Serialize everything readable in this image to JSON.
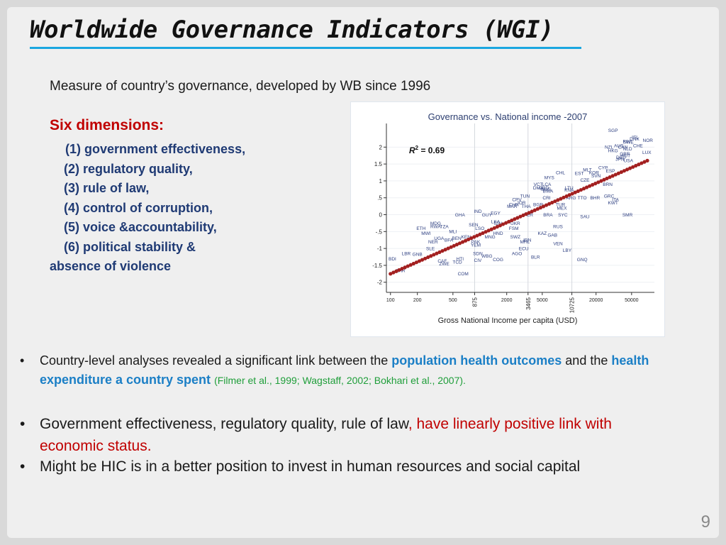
{
  "slide": {
    "title": "Worldwide Governance Indicators (WGI)",
    "subtitle": "Measure of country’s governance, developed by WB since 1996",
    "dims_heading": "Six dimensions:",
    "dims": [
      "(1) government effectiveness,",
      "(2) regulatory quality,",
      "(3) rule of law,",
      "(4) control of corruption,",
      "(5) voice &accountability,",
      "(6) political stability &",
      "absence of violence"
    ],
    "bullet1": {
      "t1": "Country-level analyses revealed a significant link between the ",
      "h1": "population health outcomes",
      "t2": " and the ",
      "h2": "health expenditure a country spent",
      "t3": " ",
      "ref": "(Filmer et al., 1999; Wagstaff, 2002; Bokhari et al., 2007)."
    },
    "bullet2": {
      "t1": "Government effectiveness, regulatory quality, rule of law",
      "red": ", have linearly positive link with economic status."
    },
    "bullet3": "Might be HIC is in a better position to invest in human resources and social capital",
    "bullet_marker": "•",
    "page_number": "9",
    "colors": {
      "title_rule": "#1aa7e0",
      "dims": "#1f3a74",
      "highlight": "#1b7fc6",
      "red": "#c00000",
      "ref": "#1f9e3a",
      "fit_line": "#a32020"
    }
  },
  "chart_data": {
    "type": "scatter",
    "title": "Governance vs. National income -2007",
    "xlabel": "Gross National Income per capita (USD)",
    "ylabel": "",
    "x_scale": "log",
    "xlim": [
      90,
      90000
    ],
    "ylim": [
      -2.3,
      2.7
    ],
    "x_ticks": [
      100,
      200,
      500,
      875,
      2000,
      3465,
      5000,
      10725,
      20000,
      50000
    ],
    "x_tick_labels": [
      "100",
      "200",
      "500",
      "875",
      "2000",
      "3465",
      "5000",
      "10725",
      "20000",
      "50000"
    ],
    "x_ticks_rotated": [
      875,
      3465,
      10725
    ],
    "vlines": [
      875,
      3465,
      10725
    ],
    "y_ticks": [
      2,
      1.5,
      1,
      0.5,
      0,
      -0.5,
      -1,
      -1.5,
      -2
    ],
    "y_tick_labels": [
      "2",
      "1.5",
      "1",
      ".5",
      "0",
      "-.5",
      "-1",
      "-1.5",
      "-2"
    ],
    "annotation": {
      "label": "R",
      "sup": "2",
      "value": " = 0.69"
    },
    "fit_line": {
      "x_start": 100,
      "x_end": 75000,
      "y_start": -1.75,
      "y_end": 1.6,
      "markers": 90
    },
    "points": [
      {
        "label": "SGP",
        "x": 31000,
        "y": 2.45
      },
      {
        "label": "DNK",
        "x": 54000,
        "y": 2.2
      },
      {
        "label": "ISL",
        "x": 55000,
        "y": 2.25
      },
      {
        "label": "NOR",
        "x": 76000,
        "y": 2.15
      },
      {
        "label": "SWE",
        "x": 46000,
        "y": 2.1
      },
      {
        "label": "FIN",
        "x": 44000,
        "y": 2.12
      },
      {
        "label": "CHE",
        "x": 59000,
        "y": 2.0
      },
      {
        "label": "NZL",
        "x": 28000,
        "y": 1.95
      },
      {
        "label": "AUS",
        "x": 36000,
        "y": 2.0
      },
      {
        "label": "CAN",
        "x": 40000,
        "y": 1.95
      },
      {
        "label": "HKG",
        "x": 31000,
        "y": 1.85
      },
      {
        "label": "NLD",
        "x": 45000,
        "y": 1.9
      },
      {
        "label": "LUX",
        "x": 74000,
        "y": 1.8
      },
      {
        "label": "GBR",
        "x": 42000,
        "y": 1.75
      },
      {
        "label": "AUT",
        "x": 43000,
        "y": 1.7
      },
      {
        "label": "DEU",
        "x": 38000,
        "y": 1.65
      },
      {
        "label": "JPN",
        "x": 37000,
        "y": 1.6
      },
      {
        "label": "USA",
        "x": 46000,
        "y": 1.55
      },
      {
        "label": "CYP",
        "x": 24000,
        "y": 1.35
      },
      {
        "label": "MLT",
        "x": 16000,
        "y": 1.28
      },
      {
        "label": "KOR",
        "x": 19000,
        "y": 1.2
      },
      {
        "label": "ESP",
        "x": 29000,
        "y": 1.25
      },
      {
        "label": "EST",
        "x": 13000,
        "y": 1.18
      },
      {
        "label": "CHL",
        "x": 8000,
        "y": 1.2
      },
      {
        "label": "SVN",
        "x": 20000,
        "y": 1.1
      },
      {
        "label": "MYS",
        "x": 6000,
        "y": 1.05
      },
      {
        "label": "CZE",
        "x": 15000,
        "y": 0.98
      },
      {
        "label": "BRN",
        "x": 27000,
        "y": 0.85
      },
      {
        "label": "VCT",
        "x": 4500,
        "y": 0.85
      },
      {
        "label": "LCA",
        "x": 5600,
        "y": 0.85
      },
      {
        "label": "DMA",
        "x": 4500,
        "y": 0.75
      },
      {
        "label": "GRD",
        "x": 5200,
        "y": 0.75
      },
      {
        "label": "MUS",
        "x": 5500,
        "y": 0.7
      },
      {
        "label": "BWA",
        "x": 5800,
        "y": 0.65
      },
      {
        "label": "LTU",
        "x": 10000,
        "y": 0.75
      },
      {
        "label": "KNA",
        "x": 10000,
        "y": 0.68
      },
      {
        "label": "TUN",
        "x": 3200,
        "y": 0.5
      },
      {
        "label": "GRC",
        "x": 28000,
        "y": 0.5
      },
      {
        "label": "CPV",
        "x": 2600,
        "y": 0.4
      },
      {
        "label": "CRI",
        "x": 5600,
        "y": 0.45
      },
      {
        "label": "ARG",
        "x": 10500,
        "y": 0.45
      },
      {
        "label": "TTO",
        "x": 14000,
        "y": 0.45
      },
      {
        "label": "BHR",
        "x": 19500,
        "y": 0.45
      },
      {
        "label": "ITA",
        "x": 33000,
        "y": 0.4
      },
      {
        "label": "KWT",
        "x": 31000,
        "y": 0.3
      },
      {
        "label": "JOR",
        "x": 2900,
        "y": 0.3
      },
      {
        "label": "CHN",
        "x": 2400,
        "y": 0.25
      },
      {
        "label": "THA",
        "x": 3300,
        "y": 0.2
      },
      {
        "label": "MAR",
        "x": 2300,
        "y": 0.2
      },
      {
        "label": "BGR",
        "x": 4500,
        "y": 0.25
      },
      {
        "label": "TUR",
        "x": 8000,
        "y": 0.25
      },
      {
        "label": "MEX",
        "x": 8300,
        "y": 0.15
      },
      {
        "label": "IND",
        "x": 950,
        "y": 0.05
      },
      {
        "label": "GHA",
        "x": 600,
        "y": -0.05
      },
      {
        "label": "GUY",
        "x": 1200,
        "y": -0.05
      },
      {
        "label": "EGY",
        "x": 1500,
        "y": 0.0
      },
      {
        "label": "PER",
        "x": 3500,
        "y": -0.05
      },
      {
        "label": "SYC",
        "x": 8500,
        "y": -0.05
      },
      {
        "label": "SMR",
        "x": 45000,
        "y": -0.05
      },
      {
        "label": "SAU",
        "x": 15000,
        "y": -0.1
      },
      {
        "label": "BRA",
        "x": 5800,
        "y": -0.05
      },
      {
        "label": "LKA",
        "x": 1500,
        "y": -0.25
      },
      {
        "label": "IDN",
        "x": 1600,
        "y": -0.3
      },
      {
        "label": "UKR",
        "x": 2500,
        "y": -0.3
      },
      {
        "label": "SEN",
        "x": 850,
        "y": -0.35
      },
      {
        "label": "MDG",
        "x": 320,
        "y": -0.3
      },
      {
        "label": "ETH",
        "x": 220,
        "y": -0.45
      },
      {
        "label": "RWA",
        "x": 320,
        "y": -0.4
      },
      {
        "label": "TZA",
        "x": 400,
        "y": -0.4
      },
      {
        "label": "MWI",
        "x": 250,
        "y": -0.6
      },
      {
        "label": "MLI",
        "x": 500,
        "y": -0.55
      },
      {
        "label": "LSO",
        "x": 1000,
        "y": -0.45
      },
      {
        "label": "FSM",
        "x": 2400,
        "y": -0.45
      },
      {
        "label": "HND",
        "x": 1600,
        "y": -0.6
      },
      {
        "label": "RUS",
        "x": 7500,
        "y": -0.4
      },
      {
        "label": "KAZ",
        "x": 5000,
        "y": -0.6
      },
      {
        "label": "GAB",
        "x": 6500,
        "y": -0.65
      },
      {
        "label": "UGA",
        "x": 350,
        "y": -0.75
      },
      {
        "label": "NER",
        "x": 300,
        "y": -0.85
      },
      {
        "label": "BFA",
        "x": 450,
        "y": -0.8
      },
      {
        "label": "BEN",
        "x": 550,
        "y": -0.75
      },
      {
        "label": "KEN",
        "x": 700,
        "y": -0.7
      },
      {
        "label": "MNG",
        "x": 1300,
        "y": -0.7
      },
      {
        "label": "SWZ",
        "x": 2500,
        "y": -0.7
      },
      {
        "label": "IRN",
        "x": 3400,
        "y": -0.8
      },
      {
        "label": "VEN",
        "x": 7500,
        "y": -0.9
      },
      {
        "label": "MHL",
        "x": 3200,
        "y": -0.85
      },
      {
        "label": "PAK",
        "x": 900,
        "y": -0.85
      },
      {
        "label": "YEM",
        "x": 900,
        "y": -0.95
      },
      {
        "label": "ECU",
        "x": 3100,
        "y": -1.05
      },
      {
        "label": "LBY",
        "x": 9500,
        "y": -1.1
      },
      {
        "label": "AGO",
        "x": 2600,
        "y": -1.2
      },
      {
        "label": "SLE",
        "x": 280,
        "y": -1.05
      },
      {
        "label": "LBR",
        "x": 150,
        "y": -1.2
      },
      {
        "label": "GNB",
        "x": 200,
        "y": -1.22
      },
      {
        "label": "SDN",
        "x": 950,
        "y": -1.2
      },
      {
        "label": "WBG",
        "x": 1200,
        "y": -1.27
      },
      {
        "label": "BLR",
        "x": 4200,
        "y": -1.3
      },
      {
        "label": "BDI",
        "x": 105,
        "y": -1.35
      },
      {
        "label": "HTI",
        "x": 600,
        "y": -1.35
      },
      {
        "label": "CIV",
        "x": 950,
        "y": -1.4
      },
      {
        "label": "COG",
        "x": 1600,
        "y": -1.38
      },
      {
        "label": "GNQ",
        "x": 14000,
        "y": -1.38
      },
      {
        "label": "CAF",
        "x": 380,
        "y": -1.42
      },
      {
        "label": "TCD",
        "x": 560,
        "y": -1.45
      },
      {
        "label": "ZWE",
        "x": 400,
        "y": -1.5
      },
      {
        "label": "ZAR",
        "x": 130,
        "y": -1.7
      },
      {
        "label": "COM",
        "x": 650,
        "y": -1.8
      }
    ]
  }
}
